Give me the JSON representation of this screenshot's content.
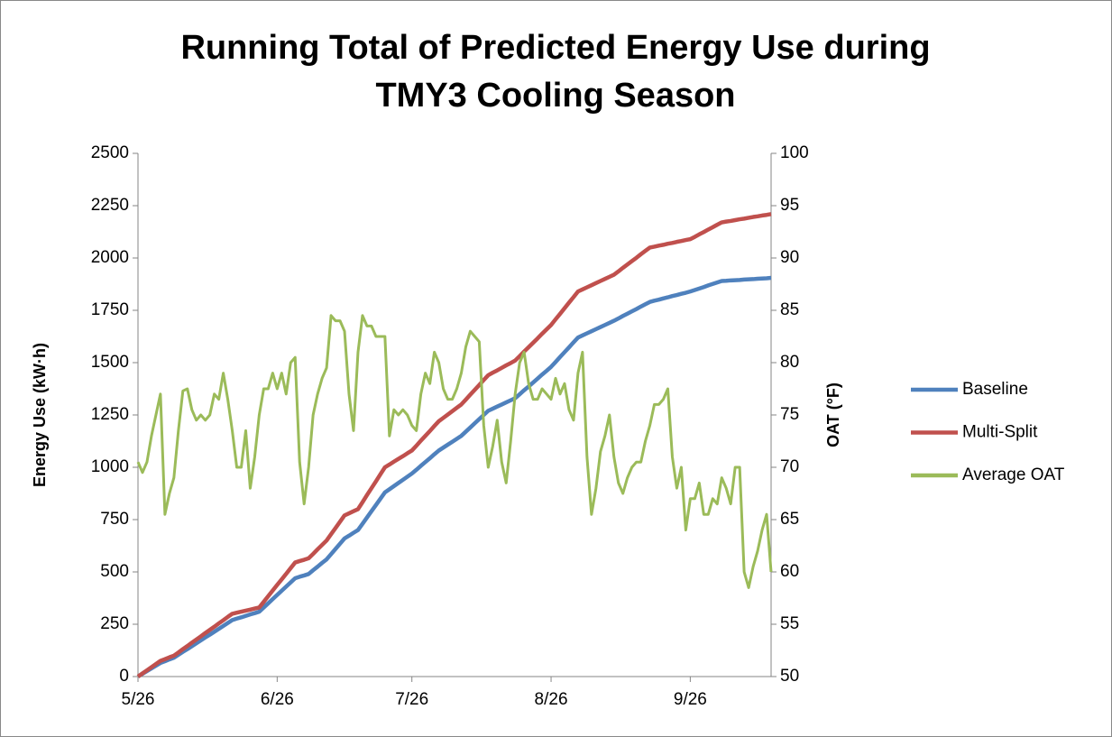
{
  "chart_data": {
    "type": "line",
    "title": [
      "Running Total of Predicted Energy Use during",
      "TMY3 Cooling Season"
    ],
    "y_label": "Energy Use (kW·h)",
    "y2_label": "OAT (°F)",
    "categories": [
      "5/26",
      null,
      null,
      null,
      null,
      null,
      null,
      null,
      null,
      null,
      null,
      null,
      null,
      null,
      null,
      null,
      null,
      null,
      null,
      null,
      null,
      null,
      null,
      null,
      null,
      null,
      null,
      null,
      null,
      null,
      null,
      "6/26",
      null,
      null,
      null,
      null,
      null,
      null,
      null,
      null,
      null,
      null,
      null,
      null,
      null,
      null,
      null,
      null,
      null,
      null,
      null,
      null,
      null,
      null,
      null,
      null,
      null,
      null,
      null,
      null,
      null,
      "7/26",
      null,
      null,
      null,
      null,
      null,
      null,
      null,
      null,
      null,
      null,
      null,
      null,
      null,
      null,
      null,
      null,
      null,
      null,
      null,
      null,
      null,
      null,
      null,
      null,
      null,
      null,
      null,
      null,
      null,
      null,
      "8/26",
      null,
      null,
      null,
      null,
      null,
      null,
      null,
      null,
      null,
      null,
      null,
      null,
      null,
      null,
      null,
      null,
      null,
      null,
      null,
      null,
      null,
      null,
      null,
      null,
      null,
      null,
      null,
      null,
      null,
      null,
      "9/26",
      null,
      null,
      null,
      null,
      null,
      null,
      null,
      null,
      null,
      null,
      null,
      null,
      null,
      null,
      null,
      null,
      null,
      null
    ],
    "series": [
      {
        "name": "Baseline",
        "color": "#4f81bd",
        "values": [
          0,
          13,
          26,
          39,
          52,
          65,
          73,
          82,
          90,
          104,
          118,
          131,
          145,
          159,
          173,
          187,
          200,
          214,
          228,
          242,
          256,
          270,
          277,
          283,
          290,
          297,
          303,
          310,
          330,
          350,
          370,
          390,
          410,
          430,
          450,
          470,
          477,
          483,
          490,
          508,
          525,
          543,
          560,
          585,
          610,
          635,
          660,
          673,
          687,
          700,
          730,
          760,
          790,
          820,
          850,
          880,
          895,
          910,
          925,
          940,
          955,
          970,
          988,
          1007,
          1025,
          1043,
          1062,
          1080,
          1094,
          1108,
          1122,
          1136,
          1150,
          1170,
          1190,
          1210,
          1230,
          1250,
          1270,
          1280,
          1290,
          1300,
          1310,
          1320,
          1330,
          1349,
          1368,
          1386,
          1405,
          1424,
          1443,
          1461,
          1480,
          1503,
          1527,
          1550,
          1573,
          1597,
          1620,
          1630,
          1640,
          1650,
          1660,
          1670,
          1680,
          1690,
          1700,
          1711,
          1723,
          1734,
          1745,
          1756,
          1768,
          1779,
          1790,
          1796,
          1801,
          1807,
          1812,
          1818,
          1823,
          1829,
          1834,
          1840,
          1847,
          1854,
          1861,
          1869,
          1876,
          1883,
          1890,
          1891,
          1893,
          1894,
          1895,
          1897,
          1898,
          1899,
          1901,
          1902,
          1903,
          1905
        ]
      },
      {
        "name": "Multi-Split",
        "color": "#c0504d",
        "values": [
          0,
          15,
          30,
          45,
          60,
          75,
          83,
          92,
          100,
          115,
          131,
          146,
          162,
          177,
          192,
          208,
          223,
          238,
          254,
          269,
          285,
          300,
          305,
          310,
          315,
          320,
          325,
          330,
          357,
          384,
          411,
          438,
          464,
          491,
          518,
          545,
          552,
          558,
          565,
          586,
          608,
          629,
          650,
          680,
          710,
          740,
          770,
          780,
          790,
          800,
          833,
          867,
          900,
          933,
          967,
          1000,
          1013,
          1027,
          1040,
          1053,
          1067,
          1080,
          1103,
          1127,
          1150,
          1173,
          1197,
          1220,
          1236,
          1252,
          1268,
          1284,
          1300,
          1323,
          1347,
          1370,
          1393,
          1417,
          1440,
          1452,
          1463,
          1475,
          1487,
          1498,
          1510,
          1531,
          1553,
          1574,
          1595,
          1616,
          1638,
          1659,
          1680,
          1707,
          1733,
          1760,
          1787,
          1813,
          1840,
          1850,
          1860,
          1870,
          1880,
          1890,
          1900,
          1910,
          1920,
          1936,
          1953,
          1969,
          1985,
          2001,
          2018,
          2034,
          2050,
          2054,
          2059,
          2063,
          2068,
          2072,
          2077,
          2081,
          2086,
          2090,
          2101,
          2113,
          2124,
          2136,
          2147,
          2159,
          2170,
          2174,
          2177,
          2181,
          2185,
          2188,
          2192,
          2196,
          2199,
          2203,
          2206,
          2210
        ]
      },
      {
        "name": "Average OAT",
        "color": "#9bbb59",
        "axis": "y2",
        "values": [
          70.5,
          69.5,
          70.5,
          73,
          75,
          77,
          65.5,
          67.5,
          69,
          73.5,
          77.3,
          77.5,
          75.5,
          74.5,
          75,
          74.5,
          75,
          77,
          76.5,
          79,
          76.5,
          73.5,
          70,
          70,
          73.5,
          68,
          71,
          75,
          77.5,
          77.5,
          79,
          77.5,
          79,
          77,
          80,
          80.5,
          70.5,
          66.5,
          70,
          75,
          77,
          78.5,
          79.5,
          84.5,
          84,
          84,
          83,
          77,
          73.5,
          81,
          84.5,
          83.5,
          83.5,
          82.5,
          82.5,
          82.5,
          73,
          75.5,
          75,
          75.5,
          75,
          74,
          73.5,
          77,
          79,
          78,
          81,
          80,
          77.5,
          76.5,
          76.5,
          77.5,
          79,
          81.5,
          83,
          82.5,
          82,
          74,
          70,
          72,
          74.5,
          70.5,
          68.5,
          72.5,
          77,
          80,
          81,
          78,
          76.5,
          76.5,
          77.5,
          77,
          76.5,
          78.5,
          77,
          78,
          75.5,
          74.5,
          79,
          81,
          71,
          65.5,
          68,
          71.5,
          73,
          75,
          71,
          68.5,
          67.5,
          69,
          70,
          70.5,
          70.5,
          72.5,
          74,
          76,
          76,
          76.5,
          77.5,
          71,
          68,
          70,
          64,
          67,
          67,
          68.5,
          65.5,
          65.5,
          67,
          66.5,
          69,
          68,
          66.5,
          70,
          70,
          60,
          58.5,
          60.5,
          62,
          64,
          65.5,
          60
        ]
      }
    ],
    "ylim": [
      0,
      2500
    ],
    "yticks": [
      0,
      250,
      500,
      750,
      1000,
      1250,
      1500,
      1750,
      2000,
      2250,
      2500
    ],
    "y2lim": [
      50,
      100
    ],
    "y2ticks": [
      50,
      55,
      60,
      65,
      70,
      75,
      80,
      85,
      90,
      95,
      100
    ],
    "grid": false,
    "legend": "right"
  }
}
